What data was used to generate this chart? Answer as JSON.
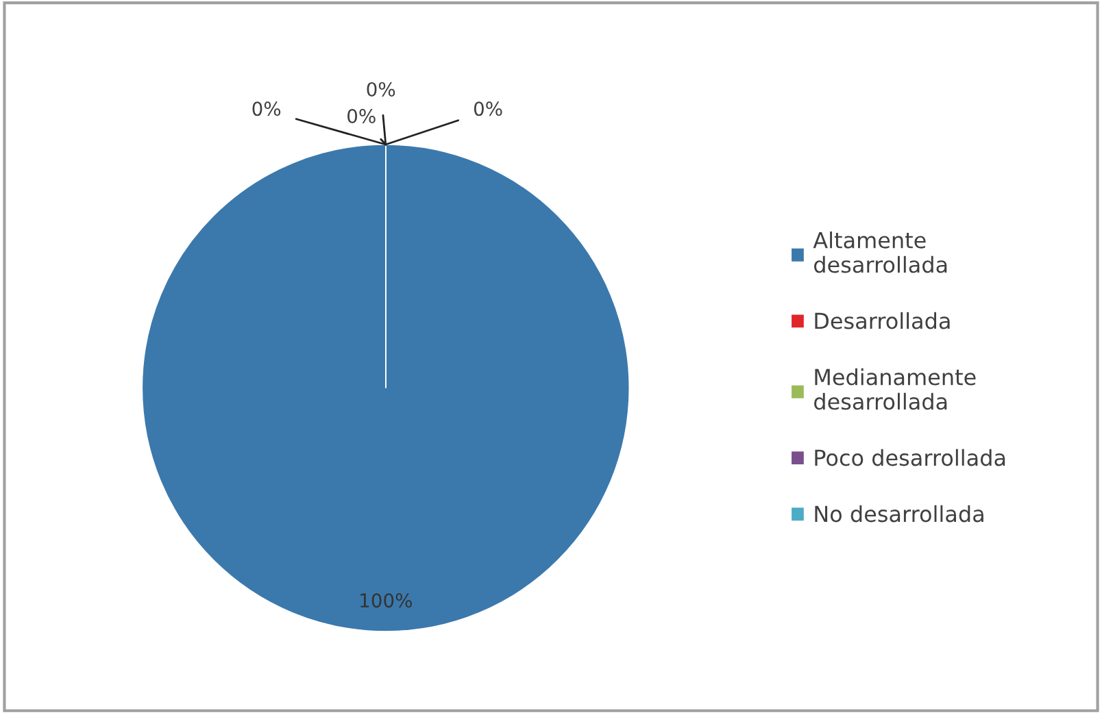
{
  "chart_data": {
    "type": "pie",
    "categories": [
      "Altamente desarrollada",
      "Desarrollada",
      "Medianamente desarrollada",
      "Poco desarrollada",
      "No desarrollada"
    ],
    "values": [
      100,
      0,
      0,
      0,
      0
    ],
    "value_labels": [
      "100%",
      "0%",
      "0%",
      "0%",
      "0%"
    ],
    "colors": [
      "#3b79ad",
      "#e0262b",
      "#9bbb59",
      "#7a4f8e",
      "#4bacc6"
    ],
    "legend": "right"
  }
}
